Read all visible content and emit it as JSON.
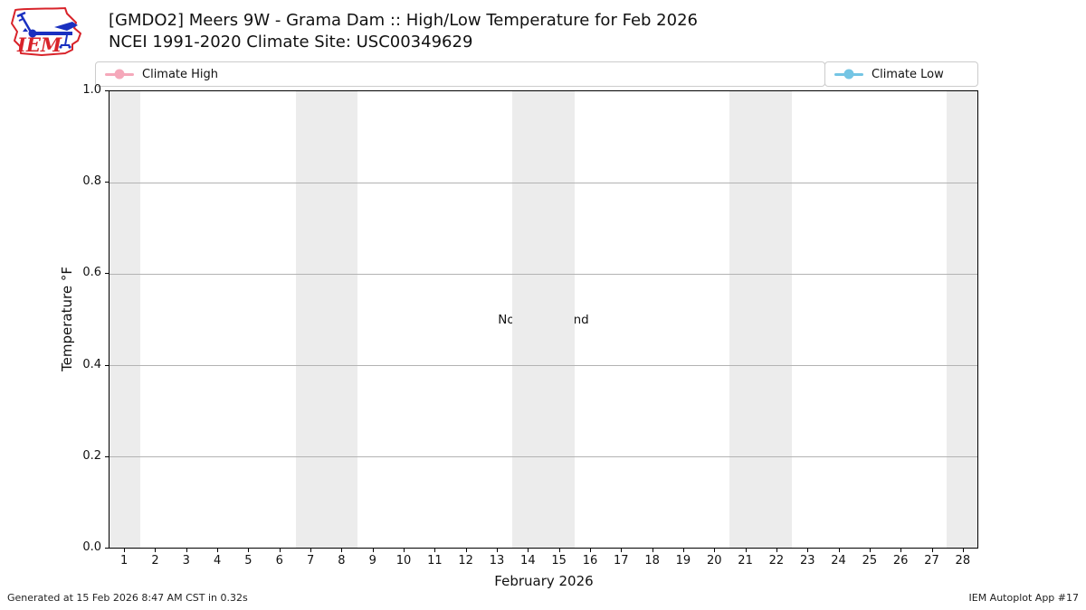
{
  "header": {
    "title_line1": "[GMDO2] Meers 9W - Grama Dam :: High/Low Temperature for Feb 2026",
    "title_line2": "NCEI 1991-2020 Climate Site: USC00349629",
    "logo_text": "IEM"
  },
  "legend": {
    "items": [
      {
        "label": "Climate High",
        "color": "#f5a8ba"
      },
      {
        "label": "Climate Low",
        "color": "#74c5e4"
      }
    ]
  },
  "chart_data": {
    "type": "line",
    "title": "",
    "xlabel": "February 2026",
    "ylabel": "Temperature °F",
    "xlim": [
      0.5,
      28.5
    ],
    "ylim": [
      0.0,
      1.0
    ],
    "xticks": [
      1,
      2,
      3,
      4,
      5,
      6,
      7,
      8,
      9,
      10,
      11,
      12,
      13,
      14,
      15,
      16,
      17,
      18,
      19,
      20,
      21,
      22,
      23,
      24,
      25,
      26,
      27,
      28
    ],
    "yticks": [
      "0.0",
      "0.2",
      "0.4",
      "0.6",
      "0.8",
      "1.0"
    ],
    "grid": "horizontal",
    "legend_position": "top",
    "weekend_bands": [
      [
        0.5,
        1.5
      ],
      [
        6.5,
        8.5
      ],
      [
        13.5,
        15.5
      ],
      [
        20.5,
        22.5
      ],
      [
        27.5,
        28.5
      ]
    ],
    "series": [
      {
        "name": "Climate High",
        "color": "#f5a8ba",
        "x": [],
        "values": []
      },
      {
        "name": "Climate Low",
        "color": "#74c5e4",
        "x": [],
        "values": []
      }
    ],
    "annotation": "No Data Found"
  },
  "footer": {
    "generated": "Generated at 15 Feb 2026 8:47 AM CST in 0.32s",
    "app": "IEM Autoplot App #17"
  },
  "colors": {
    "band": "#ececec",
    "grid": "#b3b3b3",
    "spine": "#000000",
    "logo_red": "#d8232a",
    "logo_blue": "#1a30c0"
  }
}
